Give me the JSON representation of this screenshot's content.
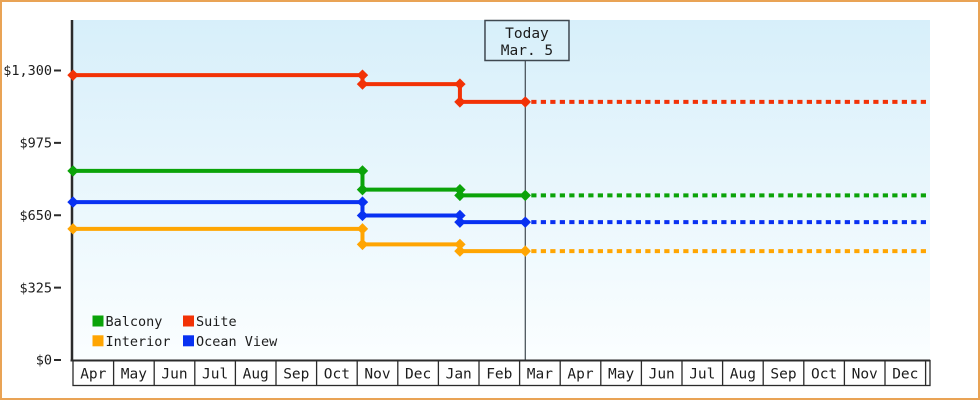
{
  "frame": {
    "border_color": "#e9a355",
    "background": "#ffffff"
  },
  "palette": {
    "axis": "#2b2b2b",
    "today_line": "#3f4850",
    "text": "#1c1c1c",
    "plot_bg_top": "#d7effa",
    "plot_bg_bottom": "#fbfeff",
    "month_cell_bg": "#ffffff"
  },
  "chart_data": {
    "type": "line",
    "subtype": "step-price-history-with-projection",
    "title": "",
    "y_axis": {
      "tick_labels": [
        "$0",
        "$325",
        "$650",
        "$975",
        "$1,300"
      ],
      "tick_values": [
        0,
        325,
        650,
        975,
        1300
      ],
      "range": [
        0,
        1300
      ]
    },
    "x_axis": {
      "month_labels": [
        "Apr",
        "May",
        "Jun",
        "Jul",
        "Aug",
        "Sep",
        "Oct",
        "Nov",
        "Dec",
        "Jan",
        "Feb",
        "Mar",
        "Apr",
        "May",
        "Jun",
        "Jul",
        "Aug",
        "Sep",
        "Oct",
        "Nov",
        "Dec"
      ],
      "months_total": 21
    },
    "today_marker": {
      "line1": "Today",
      "line2": "Mar. 5",
      "x_months": 11.14
    },
    "series": [
      {
        "name": "Balcony",
        "color": "#0ba309",
        "steps": [
          {
            "x_months": 0,
            "price": 849
          },
          {
            "x_months": 7.13,
            "price": 765
          },
          {
            "x_months": 9.53,
            "price": 739
          }
        ]
      },
      {
        "name": "Suite",
        "color": "#f23206",
        "steps": [
          {
            "x_months": 0,
            "price": 1279
          },
          {
            "x_months": 7.13,
            "price": 1239
          },
          {
            "x_months": 9.53,
            "price": 1159
          }
        ]
      },
      {
        "name": "Interior",
        "color": "#ffa502",
        "steps": [
          {
            "x_months": 0,
            "price": 589
          },
          {
            "x_months": 7.13,
            "price": 519
          },
          {
            "x_months": 9.53,
            "price": 489
          }
        ]
      },
      {
        "name": "Ocean View",
        "color": "#0831f2",
        "steps": [
          {
            "x_months": 0,
            "price": 709
          },
          {
            "x_months": 7.13,
            "price": 649
          },
          {
            "x_months": 9.53,
            "price": 619
          }
        ]
      }
    ],
    "projection_style": "dotted continuation of last price after today",
    "legend": {
      "rows": [
        [
          "Balcony",
          "Suite"
        ],
        [
          "Interior",
          "Ocean View"
        ]
      ],
      "position": "bottom-left-inside-plot"
    }
  }
}
